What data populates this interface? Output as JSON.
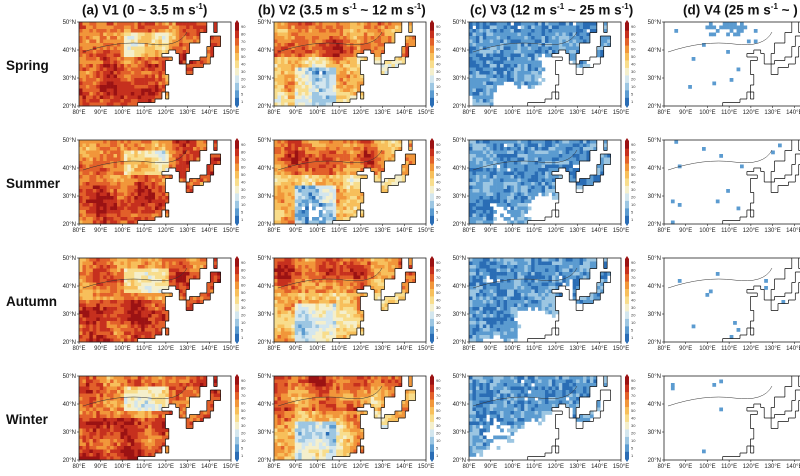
{
  "columns": [
    {
      "prefix": "(a) V1 (0 ~ 3.5 m s",
      "sup": "-1",
      "suffix": ")"
    },
    {
      "prefix": "(b) V2 (3.5 m s",
      "sup": "-1",
      "suffix": " ~ 12 m s",
      "sup2": "-1",
      "suffix2": ")"
    },
    {
      "prefix": "(c) V3 (12 m s",
      "sup": "-1",
      "suffix": " ~ 25 m s",
      "sup2": "-1",
      "suffix2": ")"
    },
    {
      "prefix": "(d) V4 (25 m s",
      "sup": "-1",
      "suffix": " ~ )"
    }
  ],
  "rows": [
    "Spring",
    "Summer",
    "Autumn",
    "Winter"
  ],
  "axes": {
    "lon_ticks": [
      "80°E",
      "90°E",
      "100°E",
      "110°E",
      "120°E",
      "130°E",
      "140°E",
      "150°E"
    ],
    "lat_ticks": [
      "20°N",
      "30°N",
      "40°N",
      "50°N"
    ],
    "lon_range": [
      80,
      150
    ],
    "lat_range": [
      20,
      50
    ]
  },
  "colorbar": {
    "ticks": [
      "1",
      "5",
      "10",
      "20",
      "30",
      "40",
      "50",
      "60",
      "70",
      "80",
      "90"
    ],
    "colors": [
      "#2a6db5",
      "#5b9bd0",
      "#9cc6e2",
      "#d3e6ee",
      "#f4efcc",
      "#f8dd8c",
      "#f7bf5b",
      "#f1963a",
      "#e2602a",
      "#c6301e",
      "#9b1213"
    ]
  }
}
